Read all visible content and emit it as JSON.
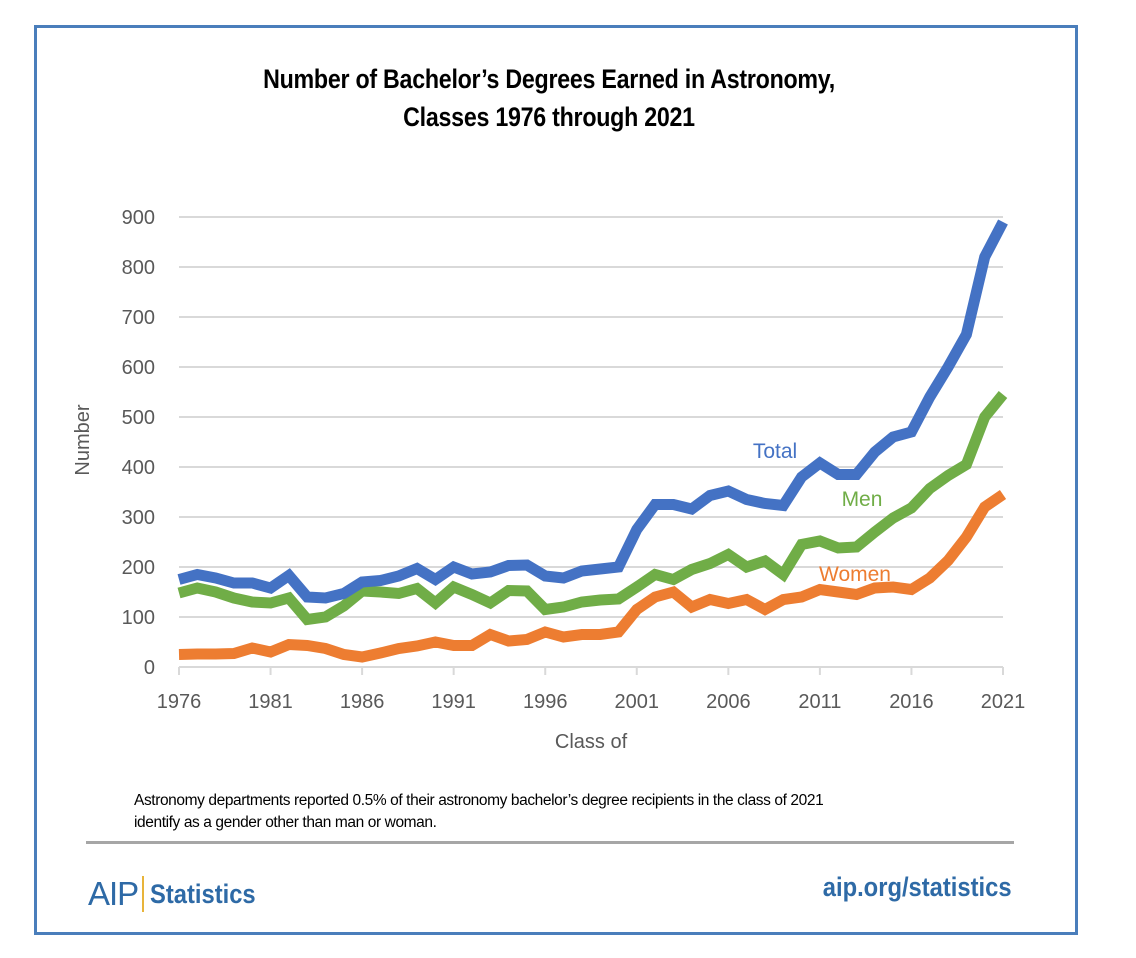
{
  "chart_data": {
    "type": "line",
    "title": [
      "Number of Bachelor’s Degrees Earned in Astronomy,",
      "Classes 1976 through 2021"
    ],
    "xlabel": "Class of",
    "ylabel": "Number",
    "xlim": [
      1976,
      2021
    ],
    "ylim": [
      0,
      900
    ],
    "grid": true,
    "x_ticks": [
      "1976",
      "1981",
      "1986",
      "1991",
      "1996",
      "2001",
      "2006",
      "2011",
      "2016",
      "2021"
    ],
    "y_ticks": [
      "0",
      "100",
      "200",
      "300",
      "400",
      "500",
      "600",
      "700",
      "800",
      "900"
    ],
    "x": [
      1976,
      1977,
      1978,
      1979,
      1980,
      1981,
      1982,
      1983,
      1984,
      1985,
      1986,
      1987,
      1988,
      1989,
      1990,
      1991,
      1992,
      1993,
      1994,
      1995,
      1996,
      1997,
      1998,
      1999,
      2000,
      2001,
      2002,
      2003,
      2004,
      2005,
      2006,
      2007,
      2008,
      2009,
      2010,
      2011,
      2012,
      2013,
      2014,
      2015,
      2016,
      2017,
      2018,
      2019,
      2020,
      2021
    ],
    "series": [
      {
        "name": "Total",
        "color": "#4472c4",
        "label_position": "above-line-near-2008",
        "values": [
          175,
          185,
          178,
          168,
          168,
          158,
          183,
          140,
          138,
          147,
          170,
          173,
          182,
          197,
          175,
          200,
          186,
          190,
          203,
          204,
          182,
          178,
          192,
          196,
          200,
          275,
          325,
          325,
          316,
          343,
          352,
          335,
          327,
          323,
          380,
          408,
          385,
          385,
          430,
          460,
          470,
          540,
          600,
          665,
          820,
          890
        ]
      },
      {
        "name": "Men",
        "color": "#70ad47",
        "label_position": "above-line-near-2012",
        "values": [
          148,
          158,
          150,
          138,
          130,
          128,
          138,
          95,
          100,
          122,
          152,
          150,
          147,
          157,
          128,
          160,
          145,
          128,
          153,
          152,
          115,
          120,
          130,
          134,
          136,
          160,
          185,
          175,
          195,
          207,
          225,
          200,
          212,
          185,
          245,
          252,
          238,
          240,
          270,
          298,
          318,
          357,
          383,
          405,
          500,
          545
        ]
      },
      {
        "name": "Women",
        "color": "#ed7d31",
        "label_position": "above-line-near-2013",
        "values": [
          25,
          26,
          26,
          27,
          38,
          30,
          45,
          43,
          37,
          25,
          20,
          28,
          37,
          42,
          50,
          43,
          43,
          65,
          52,
          55,
          70,
          60,
          65,
          65,
          70,
          115,
          140,
          150,
          120,
          135,
          127,
          135,
          115,
          135,
          140,
          155,
          150,
          145,
          158,
          160,
          155,
          178,
          213,
          260,
          320,
          345
        ]
      }
    ],
    "annotations": [
      {
        "text": "Total",
        "series": "Total"
      },
      {
        "text": "Men",
        "series": "Men"
      },
      {
        "text": "Women",
        "series": "Women"
      }
    ],
    "footnote": [
      "Astronomy departments reported 0.5%  of their astronomy bachelor’s degree recipients in the class of 2021",
      "identify as a gender other than man or woman."
    ]
  },
  "footer": {
    "logo_aip": "AIP",
    "logo_statistics": "Statistics",
    "url": "aip.org/statistics",
    "brand_color": "#2e6aa6"
  }
}
